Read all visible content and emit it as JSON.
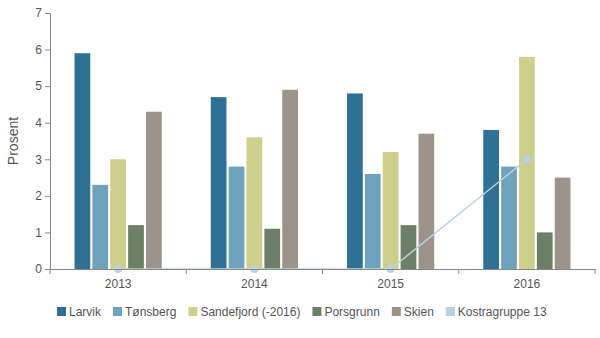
{
  "chart_data": {
    "type": "bar",
    "y_label": "Prosent",
    "categories": [
      "2013",
      "2014",
      "2015",
      "2016"
    ],
    "series": [
      {
        "name": "Larvik",
        "color": "#2e7194",
        "values": [
          5.9,
          4.7,
          4.8,
          3.8
        ]
      },
      {
        "name": "Tønsberg",
        "color": "#6fa3bd",
        "values": [
          2.3,
          2.8,
          2.6,
          2.8
        ]
      },
      {
        "name": "Sandefjord (-2016)",
        "color": "#cdcf8a",
        "values": [
          3.0,
          3.6,
          3.2,
          5.8
        ]
      },
      {
        "name": "Porsgrunn",
        "color": "#6b8064",
        "values": [
          1.2,
          1.1,
          1.2,
          1.0
        ]
      },
      {
        "name": "Skien",
        "color": "#9c948a",
        "values": [
          4.3,
          4.9,
          3.7,
          2.5
        ]
      },
      {
        "name": "Kostragruppe 13",
        "color": "#b8d3de",
        "type": "line",
        "marker": "circle",
        "values": [
          0,
          0,
          0,
          3.0
        ]
      }
    ],
    "ylim": [
      0,
      7
    ],
    "yticks": [
      0,
      1,
      2,
      3,
      4,
      5,
      6,
      7
    ],
    "grid": false,
    "legend": "bottom"
  }
}
